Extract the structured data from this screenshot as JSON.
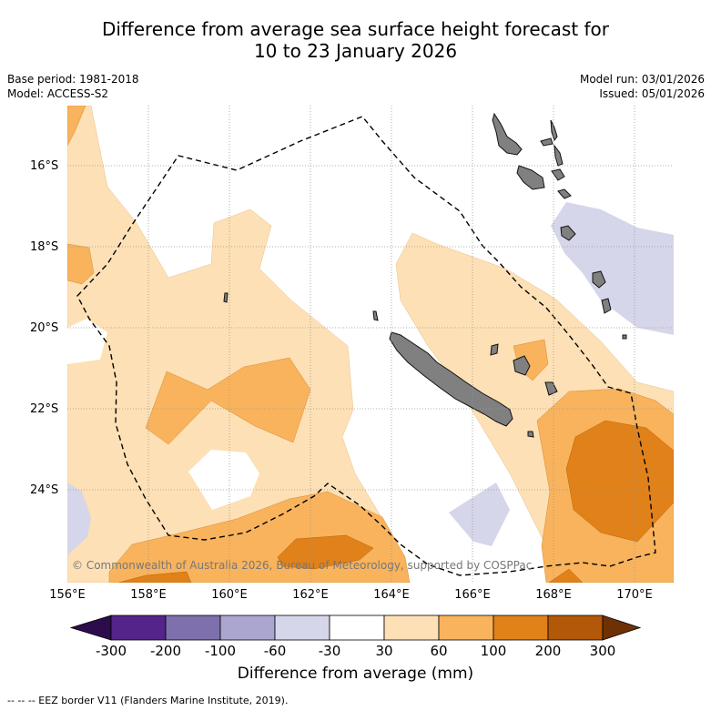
{
  "title_line1": "Difference from average sea surface height forecast for",
  "title_line2": "10 to 23 January 2026",
  "base_period": "Base period: 1981-2018",
  "model": "Model: ACCESS-S2",
  "model_run": "Model run: 03/01/2026",
  "issued": "Issued: 05/01/2026",
  "copyright": "© Commonwealth of Australia 2026, Bureau of Meteorology, supported by COSPPac",
  "y_labels": [
    "16°S",
    "18°S",
    "20°S",
    "22°S",
    "24°S"
  ],
  "x_labels": [
    "156°E",
    "158°E",
    "160°E",
    "162°E",
    "164°E",
    "166°E",
    "168°E",
    "170°E"
  ],
  "colorbar": {
    "ticks": [
      "-300",
      "-200",
      "-100",
      "-60",
      "-30",
      "30",
      "60",
      "100",
      "200",
      "300"
    ],
    "colors": [
      "#2d0c4d",
      "#54248b",
      "#7e70ad",
      "#aba6cf",
      "#d6d6ea",
      "#ffffff",
      "#fde0b5",
      "#f8b35c",
      "#e0811a",
      "#b35808",
      "#6e3104"
    ],
    "label": "Difference from average (mm)"
  },
  "legend": "-- -- -- EEZ border V11 (Flanders Marine Institute, 2019).",
  "colors": {
    "land": "#808080",
    "grid": "#999999"
  }
}
